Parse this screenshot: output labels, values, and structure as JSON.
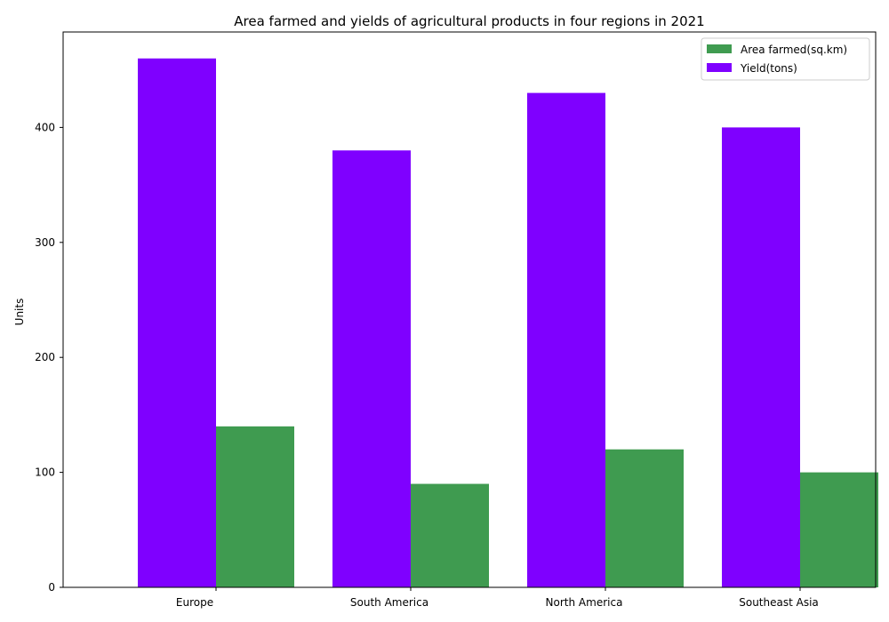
{
  "chart_data": {
    "type": "bar",
    "title": "Area farmed and yields of agricultural products in four regions in 2021",
    "xlabel": "",
    "ylabel": "Units",
    "categories": [
      "Europe",
      "South America",
      "North America",
      "Southeast Asia"
    ],
    "series": [
      {
        "name": "Area farmed(sq.km)",
        "values": [
          140,
          90,
          120,
          100
        ],
        "color": "#3f9b50"
      },
      {
        "name": "Yield(tons)",
        "values": [
          460,
          380,
          430,
          400
        ],
        "color": "#7f00ff"
      }
    ],
    "ylim": [
      0,
      483
    ],
    "yticks": [
      0,
      100,
      200,
      300,
      400
    ],
    "grid": false,
    "legend_position": "top-right"
  }
}
